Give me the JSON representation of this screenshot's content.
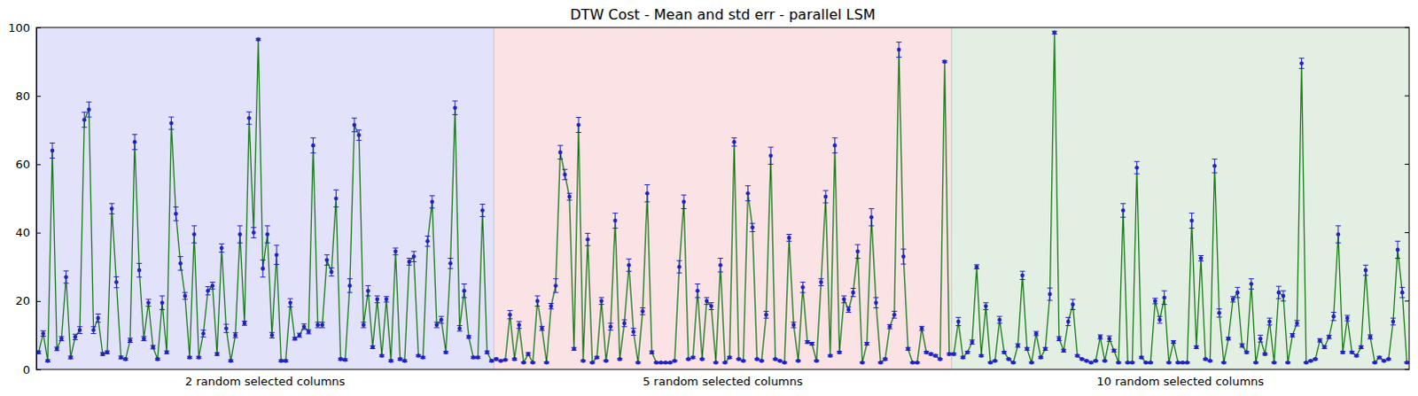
{
  "chart_data": {
    "type": "line",
    "title": "DTW Cost - Mean and std err - parallel LSM",
    "tick_labels": "y",
    "xlim": [
      -0.5,
      299.5
    ],
    "ylim": [
      0,
      100
    ],
    "yticks": [
      0,
      20,
      40,
      60,
      80,
      100
    ],
    "regions": [
      {
        "label": "2 random selected columns",
        "start": -0.5,
        "end": 99.5,
        "color": "#e2e2fb"
      },
      {
        "label": "5 random selected columns",
        "start": 99.5,
        "end": 199.5,
        "color": "#fbe2e4"
      },
      {
        "label": "10 random selected columns",
        "start": 199.5,
        "end": 299.5,
        "color": "#e2efe2"
      }
    ],
    "x": [
      0,
      1,
      2,
      3,
      4,
      5,
      6,
      7,
      8,
      9,
      10,
      11,
      12,
      13,
      14,
      15,
      16,
      17,
      18,
      19,
      20,
      21,
      22,
      23,
      24,
      25,
      26,
      27,
      28,
      29,
      30,
      31,
      32,
      33,
      34,
      35,
      36,
      37,
      38,
      39,
      40,
      41,
      42,
      43,
      44,
      45,
      46,
      47,
      48,
      49,
      50,
      51,
      52,
      53,
      54,
      55,
      56,
      57,
      58,
      59,
      60,
      61,
      62,
      63,
      64,
      65,
      66,
      67,
      68,
      69,
      70,
      71,
      72,
      73,
      74,
      75,
      76,
      77,
      78,
      79,
      80,
      81,
      82,
      83,
      84,
      85,
      86,
      87,
      88,
      89,
      90,
      91,
      92,
      93,
      94,
      95,
      96,
      97,
      98,
      99,
      100,
      101,
      102,
      103,
      104,
      105,
      106,
      107,
      108,
      109,
      110,
      111,
      112,
      113,
      114,
      115,
      116,
      117,
      118,
      119,
      120,
      121,
      122,
      123,
      124,
      125,
      126,
      127,
      128,
      129,
      130,
      131,
      132,
      133,
      134,
      135,
      136,
      137,
      138,
      139,
      140,
      141,
      142,
      143,
      144,
      145,
      146,
      147,
      148,
      149,
      150,
      151,
      152,
      153,
      154,
      155,
      156,
      157,
      158,
      159,
      160,
      161,
      162,
      163,
      164,
      165,
      166,
      167,
      168,
      169,
      170,
      171,
      172,
      173,
      174,
      175,
      176,
      177,
      178,
      179,
      180,
      181,
      182,
      183,
      184,
      185,
      186,
      187,
      188,
      189,
      190,
      191,
      192,
      193,
      194,
      195,
      196,
      197,
      198,
      199,
      200,
      201,
      202,
      203,
      204,
      205,
      206,
      207,
      208,
      209,
      210,
      211,
      212,
      213,
      214,
      215,
      216,
      217,
      218,
      219,
      220,
      221,
      222,
      223,
      224,
      225,
      226,
      227,
      228,
      229,
      230,
      231,
      232,
      233,
      234,
      235,
      236,
      237,
      238,
      239,
      240,
      241,
      242,
      243,
      244,
      245,
      246,
      247,
      248,
      249,
      250,
      251,
      252,
      253,
      254,
      255,
      256,
      257,
      258,
      259,
      260,
      261,
      262,
      263,
      264,
      265,
      266,
      267,
      268,
      269,
      270,
      271,
      272,
      273,
      274,
      275,
      276,
      277,
      278,
      279,
      280,
      281,
      282,
      283,
      284,
      285,
      286,
      287,
      288,
      289,
      290,
      291,
      292,
      293,
      294,
      295,
      296,
      297,
      298,
      299
    ],
    "series": [
      {
        "color": "#1b7a1b",
        "marker": "circle",
        "values": [
          5,
          10.5,
          2.5,
          64,
          6,
          9,
          27,
          3.5,
          9.5,
          11.5,
          73,
          76,
          11.5,
          15,
          4.5,
          5,
          47,
          25.5,
          3.5,
          3,
          8.5,
          66.5,
          29,
          9,
          19.5,
          6.5,
          3,
          19.5,
          5,
          72,
          45.5,
          31,
          21.5,
          3.5,
          39.5,
          3.5,
          10.5,
          23,
          24.5,
          4.5,
          35.5,
          12,
          2.5,
          10,
          39.5,
          13.5,
          73.5,
          40,
          96.5,
          29.5,
          39.5,
          10,
          33.5,
          2.5,
          2.5,
          19.5,
          9,
          10,
          12.5,
          11,
          65.5,
          13,
          13,
          32,
          28.5,
          50,
          3,
          2.8,
          24.5,
          71.5,
          68.5,
          13,
          23,
          6.5,
          20.5,
          4,
          20.5,
          2.5,
          34.5,
          3,
          2.5,
          31.5,
          33,
          4,
          3.5,
          37.5,
          49,
          13,
          14.5,
          5,
          31,
          76.5,
          12,
          23,
          9.5,
          3.5,
          3.5,
          46.5,
          5,
          2.5,
          3,
          2.5,
          2.8,
          16,
          3,
          13,
          2,
          4.5,
          2,
          20,
          12,
          2,
          18.5,
          24.5,
          63.5,
          57,
          50.5,
          6,
          71.5,
          2.5,
          38,
          2,
          3.5,
          20,
          2.5,
          12.5,
          43.5,
          3,
          13.5,
          30.5,
          11,
          2,
          17,
          51.5,
          5,
          2,
          2,
          2,
          2,
          2.5,
          30,
          49,
          3,
          3.5,
          23,
          3,
          20,
          18.5,
          2,
          30.5,
          2,
          3.5,
          66.5,
          3,
          2.5,
          51.5,
          41.5,
          3,
          2.5,
          16,
          62.5,
          3,
          2.5,
          2,
          38.5,
          13,
          2.5,
          24,
          8,
          7.5,
          2.5,
          25.5,
          50.5,
          4,
          65.5,
          5,
          20.5,
          17.5,
          22.5,
          34.5,
          2,
          7.5,
          44.5,
          19.5,
          2,
          3,
          12.5,
          16,
          93.5,
          33,
          6,
          2,
          2,
          12,
          5,
          4.5,
          4,
          3,
          90,
          4.5,
          4.5,
          14,
          3.5,
          5,
          8,
          30,
          4,
          18.5,
          2,
          2.5,
          14.5,
          5,
          3,
          2,
          7,
          27.5,
          6,
          2,
          10.5,
          3.5,
          6,
          22,
          98.5,
          9,
          5.5,
          14,
          19,
          4,
          3,
          2.5,
          2,
          2.5,
          9.5,
          2.5,
          9,
          5.5,
          2,
          46.5,
          2,
          2,
          59,
          3.5,
          2,
          2,
          20,
          14.5,
          21,
          2,
          8,
          2,
          2,
          2,
          43.5,
          6.5,
          32.5,
          3,
          2.5,
          59.5,
          16.5,
          2,
          9,
          20.5,
          22.5,
          7,
          5,
          25,
          2,
          9,
          4.5,
          14,
          2,
          22.5,
          21.5,
          2,
          10,
          13.5,
          89.5,
          2,
          2.5,
          3,
          8.5,
          6.5,
          9.5,
          15.5,
          39.5,
          5,
          15,
          5,
          4,
          6.5,
          29,
          9.5,
          2,
          3.5,
          2.5,
          3,
          14,
          35,
          22.5,
          2
        ],
        "errors": [
          0.4,
          0.8,
          0.3,
          2.2,
          0.5,
          0.6,
          1.8,
          0.4,
          0.8,
          1.0,
          2.2,
          2.2,
          1.0,
          1.2,
          0.4,
          0.4,
          1.5,
          1.6,
          0.4,
          0.3,
          0.6,
          2.2,
          2.0,
          0.6,
          1.0,
          0.5,
          0.3,
          2.0,
          0.4,
          1.8,
          2.0,
          2.0,
          1.0,
          0.3,
          2.5,
          0.3,
          1.0,
          1.2,
          1.0,
          0.4,
          1.2,
          1.2,
          0.3,
          0.7,
          2.5,
          0.6,
          1.8,
          1.5,
          0.3,
          2.5,
          2.5,
          0.8,
          2.8,
          0.3,
          0.3,
          1.2,
          0.4,
          0.6,
          0.8,
          0.6,
          2.2,
          0.8,
          0.8,
          1.5,
          1.2,
          2.5,
          0.3,
          0.3,
          2.0,
          2.0,
          1.5,
          0.8,
          1.5,
          0.4,
          1.0,
          0.3,
          0.8,
          0.3,
          1.0,
          0.3,
          0.3,
          1.0,
          1.5,
          0.3,
          0.3,
          1.5,
          1.8,
          0.8,
          1.0,
          0.3,
          1.5,
          2.0,
          0.8,
          2.0,
          0.4,
          0.3,
          0.3,
          1.8,
          0.4,
          0.3,
          0.3,
          0.2,
          0.2,
          1.2,
          0.3,
          1.0,
          0.2,
          0.4,
          0.2,
          1.5,
          0.6,
          0.2,
          0.8,
          2.0,
          2.0,
          1.5,
          1.0,
          0.4,
          2.2,
          0.2,
          1.8,
          0.2,
          0.3,
          1.0,
          0.2,
          1.0,
          2.2,
          0.2,
          1.0,
          1.8,
          1.0,
          0.2,
          1.0,
          2.5,
          0.4,
          0.2,
          0.2,
          0.2,
          0.2,
          0.2,
          1.8,
          2.0,
          0.2,
          0.3,
          2.0,
          0.2,
          1.0,
          1.0,
          0.2,
          2.0,
          0.2,
          0.3,
          1.2,
          0.2,
          0.2,
          2.2,
          1.2,
          0.2,
          0.2,
          1.0,
          2.5,
          0.2,
          0.2,
          0.2,
          1.0,
          0.8,
          0.2,
          1.5,
          0.4,
          0.4,
          0.2,
          1.0,
          1.8,
          0.3,
          2.2,
          0.3,
          1.0,
          0.8,
          1.2,
          2.0,
          0.2,
          0.4,
          2.5,
          1.5,
          0.2,
          0.3,
          0.6,
          1.0,
          2.2,
          2.2,
          0.4,
          0.2,
          0.2,
          0.6,
          0.3,
          0.3,
          0.3,
          0.2,
          0.3,
          0.3,
          0.3,
          1.2,
          0.3,
          0.3,
          0.6,
          0.6,
          0.3,
          1.0,
          0.2,
          0.2,
          1.0,
          0.3,
          0.2,
          0.2,
          0.5,
          1.2,
          0.4,
          0.2,
          0.6,
          0.3,
          0.4,
          1.8,
          0.4,
          0.6,
          0.4,
          1.2,
          1.5,
          0.3,
          0.2,
          0.2,
          0.2,
          0.2,
          0.6,
          0.2,
          0.8,
          0.4,
          0.2,
          2.0,
          0.2,
          0.2,
          1.8,
          0.3,
          0.2,
          0.2,
          0.8,
          1.0,
          2.0,
          0.2,
          0.4,
          0.2,
          0.2,
          0.2,
          2.2,
          0.4,
          0.8,
          0.2,
          0.2,
          2.0,
          1.2,
          0.2,
          0.4,
          0.8,
          1.5,
          0.5,
          0.3,
          1.5,
          0.2,
          1.0,
          0.3,
          1.0,
          0.2,
          1.8,
          1.5,
          0.2,
          0.5,
          0.8,
          1.5,
          0.2,
          0.2,
          0.2,
          0.5,
          0.4,
          0.5,
          1.2,
          2.5,
          0.3,
          0.8,
          0.3,
          0.3,
          0.4,
          1.5,
          0.6,
          0.2,
          0.3,
          0.2,
          0.2,
          1.0,
          2.5,
          1.5,
          0.2
        ]
      }
    ]
  }
}
